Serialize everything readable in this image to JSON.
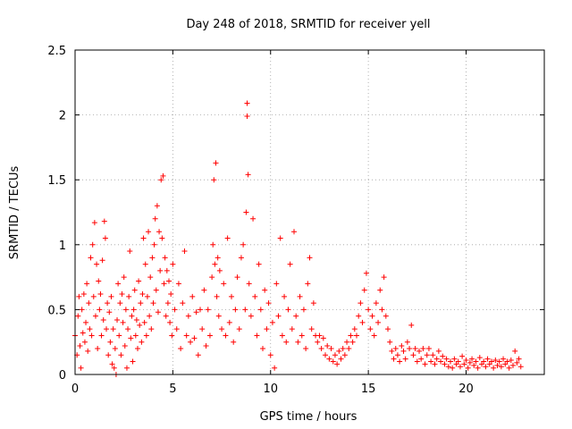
{
  "chart_data": {
    "type": "scatter",
    "title": "Day 248 of 2018, SRMTID for receiver yell",
    "xlabel": "GPS time / hours",
    "ylabel": "SRMTID / TECUs",
    "xlim": [
      0,
      24
    ],
    "ylim": [
      0,
      2.5
    ],
    "xticks": [
      0,
      5,
      10,
      15,
      20
    ],
    "xtick_labels": [
      "0",
      "5",
      "10",
      "15",
      "20"
    ],
    "yticks": [
      0,
      0.5,
      1,
      1.5,
      2,
      2.5
    ],
    "ytick_labels": [
      "0",
      "0.5",
      "1",
      "1.5",
      "2",
      "2.5"
    ],
    "grid": true,
    "marker": "+",
    "color": "#ff0000",
    "series": [
      {
        "name": "SRMTID",
        "points": [
          [
            0.0,
            0.3
          ],
          [
            0.1,
            0.15
          ],
          [
            0.15,
            0.45
          ],
          [
            0.2,
            0.6
          ],
          [
            0.25,
            0.22
          ],
          [
            0.3,
            0.05
          ],
          [
            0.35,
            0.5
          ],
          [
            0.4,
            0.32
          ],
          [
            0.45,
            0.62
          ],
          [
            0.5,
            0.25
          ],
          [
            0.55,
            0.4
          ],
          [
            0.6,
            0.7
          ],
          [
            0.65,
            0.18
          ],
          [
            0.7,
            0.55
          ],
          [
            0.75,
            0.35
          ],
          [
            0.8,
            0.9
          ],
          [
            0.85,
            0.3
          ],
          [
            0.9,
            1.0
          ],
          [
            0.95,
            0.6
          ],
          [
            1.0,
            1.17
          ],
          [
            1.05,
            0.45
          ],
          [
            1.1,
            0.85
          ],
          [
            1.15,
            0.2
          ],
          [
            1.2,
            0.72
          ],
          [
            1.25,
            0.5
          ],
          [
            1.3,
            0.62
          ],
          [
            1.35,
            0.3
          ],
          [
            1.4,
            0.88
          ],
          [
            1.45,
            0.42
          ],
          [
            1.5,
            1.18
          ],
          [
            1.55,
            1.05
          ],
          [
            1.6,
            0.35
          ],
          [
            1.65,
            0.55
          ],
          [
            1.7,
            0.15
          ],
          [
            1.75,
            0.48
          ],
          [
            1.8,
            0.25
          ],
          [
            1.85,
            0.6
          ],
          [
            1.9,
            0.08
          ],
          [
            1.95,
            0.35
          ],
          [
            2.0,
            0.05
          ],
          [
            2.05,
            0.2
          ],
          [
            2.1,
            0.0
          ],
          [
            2.15,
            0.42
          ],
          [
            2.2,
            0.7
          ],
          [
            2.25,
            0.3
          ],
          [
            2.3,
            0.55
          ],
          [
            2.35,
            0.15
          ],
          [
            2.4,
            0.62
          ],
          [
            2.45,
            0.4
          ],
          [
            2.5,
            0.75
          ],
          [
            2.55,
            0.22
          ],
          [
            2.6,
            0.5
          ],
          [
            2.65,
            0.05
          ],
          [
            2.7,
            0.35
          ],
          [
            2.75,
            0.6
          ],
          [
            2.8,
            0.95
          ],
          [
            2.85,
            0.28
          ],
          [
            2.9,
            0.45
          ],
          [
            2.95,
            0.1
          ],
          [
            3.0,
            0.5
          ],
          [
            3.05,
            0.65
          ],
          [
            3.1,
            0.3
          ],
          [
            3.15,
            0.42
          ],
          [
            3.2,
            0.2
          ],
          [
            3.25,
            0.72
          ],
          [
            3.3,
            0.38
          ],
          [
            3.35,
            0.55
          ],
          [
            3.4,
            0.25
          ],
          [
            3.45,
            0.62
          ],
          [
            3.5,
            1.05
          ],
          [
            3.55,
            0.4
          ],
          [
            3.6,
            0.85
          ],
          [
            3.65,
            0.3
          ],
          [
            3.7,
            0.6
          ],
          [
            3.75,
            1.1
          ],
          [
            3.8,
            0.45
          ],
          [
            3.85,
            0.75
          ],
          [
            3.9,
            0.35
          ],
          [
            3.95,
            0.9
          ],
          [
            4.0,
            0.55
          ],
          [
            4.05,
            1.0
          ],
          [
            4.1,
            1.2
          ],
          [
            4.15,
            0.65
          ],
          [
            4.2,
            1.3
          ],
          [
            4.25,
            0.48
          ],
          [
            4.3,
            1.1
          ],
          [
            4.35,
            0.8
          ],
          [
            4.4,
            1.5
          ],
          [
            4.45,
            1.05
          ],
          [
            4.5,
            1.53
          ],
          [
            4.55,
            0.7
          ],
          [
            4.6,
            0.9
          ],
          [
            4.65,
            0.45
          ],
          [
            4.7,
            0.8
          ],
          [
            4.75,
            0.55
          ],
          [
            4.8,
            0.72
          ],
          [
            4.85,
            0.4
          ],
          [
            4.9,
            0.62
          ],
          [
            4.95,
            0.3
          ],
          [
            5.0,
            0.85
          ],
          [
            5.1,
            0.5
          ],
          [
            5.2,
            0.35
          ],
          [
            5.3,
            0.7
          ],
          [
            5.4,
            0.2
          ],
          [
            5.5,
            0.55
          ],
          [
            5.6,
            0.95
          ],
          [
            5.7,
            0.3
          ],
          [
            5.8,
            0.45
          ],
          [
            5.9,
            0.25
          ],
          [
            6.0,
            0.6
          ],
          [
            6.1,
            0.28
          ],
          [
            6.2,
            0.48
          ],
          [
            6.3,
            0.15
          ],
          [
            6.4,
            0.5
          ],
          [
            6.5,
            0.35
          ],
          [
            6.6,
            0.65
          ],
          [
            6.7,
            0.22
          ],
          [
            6.8,
            0.5
          ],
          [
            6.9,
            0.3
          ],
          [
            7.0,
            0.75
          ],
          [
            7.05,
            1.0
          ],
          [
            7.1,
            1.5
          ],
          [
            7.15,
            0.85
          ],
          [
            7.2,
            1.63
          ],
          [
            7.25,
            0.6
          ],
          [
            7.3,
            0.9
          ],
          [
            7.35,
            0.45
          ],
          [
            7.4,
            0.8
          ],
          [
            7.5,
            0.35
          ],
          [
            7.6,
            0.7
          ],
          [
            7.7,
            0.3
          ],
          [
            7.8,
            1.05
          ],
          [
            7.9,
            0.4
          ],
          [
            8.0,
            0.6
          ],
          [
            8.1,
            0.25
          ],
          [
            8.2,
            0.5
          ],
          [
            8.3,
            0.75
          ],
          [
            8.4,
            0.35
          ],
          [
            8.5,
            0.9
          ],
          [
            8.6,
            1.0
          ],
          [
            8.7,
            0.5
          ],
          [
            8.75,
            1.25
          ],
          [
            8.8,
            2.09
          ],
          [
            8.8,
            1.99
          ],
          [
            8.85,
            1.54
          ],
          [
            8.9,
            0.7
          ],
          [
            9.0,
            0.45
          ],
          [
            9.1,
            1.2
          ],
          [
            9.2,
            0.6
          ],
          [
            9.3,
            0.3
          ],
          [
            9.4,
            0.85
          ],
          [
            9.5,
            0.5
          ],
          [
            9.6,
            0.2
          ],
          [
            9.7,
            0.65
          ],
          [
            9.8,
            0.35
          ],
          [
            9.9,
            0.55
          ],
          [
            10.0,
            0.15
          ],
          [
            10.1,
            0.4
          ],
          [
            10.2,
            0.05
          ],
          [
            10.3,
            0.7
          ],
          [
            10.4,
            0.45
          ],
          [
            10.5,
            1.05
          ],
          [
            10.6,
            0.3
          ],
          [
            10.7,
            0.6
          ],
          [
            10.8,
            0.25
          ],
          [
            10.9,
            0.5
          ],
          [
            11.0,
            0.85
          ],
          [
            11.1,
            0.35
          ],
          [
            11.2,
            1.1
          ],
          [
            11.3,
            0.45
          ],
          [
            11.4,
            0.25
          ],
          [
            11.5,
            0.6
          ],
          [
            11.6,
            0.3
          ],
          [
            11.7,
            0.5
          ],
          [
            11.8,
            0.2
          ],
          [
            11.9,
            0.7
          ],
          [
            12.0,
            0.9
          ],
          [
            12.1,
            0.35
          ],
          [
            12.2,
            0.55
          ],
          [
            12.3,
            0.3
          ],
          [
            12.4,
            0.25
          ],
          [
            12.5,
            0.3
          ],
          [
            12.6,
            0.2
          ],
          [
            12.7,
            0.28
          ],
          [
            12.8,
            0.15
          ],
          [
            12.9,
            0.22
          ],
          [
            13.0,
            0.12
          ],
          [
            13.1,
            0.2
          ],
          [
            13.2,
            0.1
          ],
          [
            13.3,
            0.15
          ],
          [
            13.4,
            0.08
          ],
          [
            13.5,
            0.18
          ],
          [
            13.6,
            0.12
          ],
          [
            13.7,
            0.2
          ],
          [
            13.8,
            0.15
          ],
          [
            13.9,
            0.25
          ],
          [
            14.0,
            0.2
          ],
          [
            14.1,
            0.3
          ],
          [
            14.2,
            0.25
          ],
          [
            14.3,
            0.35
          ],
          [
            14.4,
            0.3
          ],
          [
            14.5,
            0.45
          ],
          [
            14.6,
            0.55
          ],
          [
            14.7,
            0.4
          ],
          [
            14.8,
            0.65
          ],
          [
            14.9,
            0.78
          ],
          [
            15.0,
            0.5
          ],
          [
            15.1,
            0.35
          ],
          [
            15.2,
            0.45
          ],
          [
            15.3,
            0.3
          ],
          [
            15.4,
            0.55
          ],
          [
            15.5,
            0.4
          ],
          [
            15.6,
            0.65
          ],
          [
            15.7,
            0.5
          ],
          [
            15.8,
            0.75
          ],
          [
            15.9,
            0.45
          ],
          [
            16.0,
            0.35
          ],
          [
            16.1,
            0.25
          ],
          [
            16.2,
            0.18
          ],
          [
            16.3,
            0.12
          ],
          [
            16.4,
            0.2
          ],
          [
            16.5,
            0.15
          ],
          [
            16.6,
            0.1
          ],
          [
            16.7,
            0.22
          ],
          [
            16.8,
            0.18
          ],
          [
            16.9,
            0.12
          ],
          [
            17.0,
            0.25
          ],
          [
            17.1,
            0.2
          ],
          [
            17.2,
            0.38
          ],
          [
            17.3,
            0.15
          ],
          [
            17.4,
            0.2
          ],
          [
            17.5,
            0.1
          ],
          [
            17.6,
            0.18
          ],
          [
            17.7,
            0.12
          ],
          [
            17.8,
            0.2
          ],
          [
            17.9,
            0.08
          ],
          [
            18.0,
            0.15
          ],
          [
            18.1,
            0.2
          ],
          [
            18.2,
            0.1
          ],
          [
            18.3,
            0.15
          ],
          [
            18.4,
            0.08
          ],
          [
            18.5,
            0.12
          ],
          [
            18.6,
            0.18
          ],
          [
            18.7,
            0.1
          ],
          [
            18.8,
            0.14
          ],
          [
            18.9,
            0.08
          ],
          [
            19.0,
            0.12
          ],
          [
            19.1,
            0.06
          ],
          [
            19.2,
            0.1
          ],
          [
            19.3,
            0.05
          ],
          [
            19.4,
            0.12
          ],
          [
            19.5,
            0.08
          ],
          [
            19.6,
            0.1
          ],
          [
            19.7,
            0.06
          ],
          [
            19.8,
            0.14
          ],
          [
            19.9,
            0.08
          ],
          [
            20.0,
            0.11
          ],
          [
            20.1,
            0.05
          ],
          [
            20.2,
            0.09
          ],
          [
            20.3,
            0.12
          ],
          [
            20.4,
            0.07
          ],
          [
            20.5,
            0.1
          ],
          [
            20.6,
            0.05
          ],
          [
            20.7,
            0.13
          ],
          [
            20.8,
            0.08
          ],
          [
            20.9,
            0.1
          ],
          [
            21.0,
            0.06
          ],
          [
            21.1,
            0.12
          ],
          [
            21.2,
            0.08
          ],
          [
            21.3,
            0.1
          ],
          [
            21.4,
            0.05
          ],
          [
            21.5,
            0.11
          ],
          [
            21.6,
            0.07
          ],
          [
            21.7,
            0.1
          ],
          [
            21.8,
            0.06
          ],
          [
            21.9,
            0.12
          ],
          [
            22.0,
            0.08
          ],
          [
            22.1,
            0.1
          ],
          [
            22.2,
            0.05
          ],
          [
            22.3,
            0.11
          ],
          [
            22.4,
            0.07
          ],
          [
            22.5,
            0.18
          ],
          [
            22.6,
            0.09
          ],
          [
            22.7,
            0.12
          ],
          [
            22.8,
            0.06
          ]
        ]
      }
    ]
  }
}
